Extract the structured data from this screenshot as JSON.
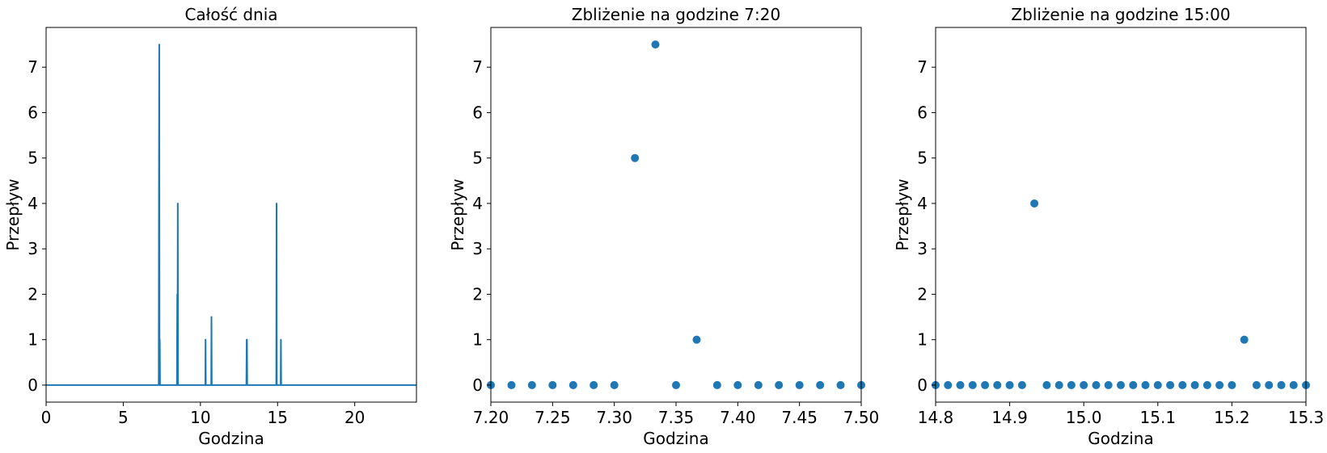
{
  "chart_data": [
    {
      "type": "line",
      "title": "Całość dnia",
      "xlabel": "Godzina",
      "ylabel": "Przepływ",
      "xlim": [
        0,
        24
      ],
      "ylim": [
        -0.375,
        7.875
      ],
      "xticks": [
        0,
        5,
        10,
        15,
        20
      ],
      "xtick_labels": [
        "0",
        "5",
        "10",
        "15",
        "20"
      ],
      "yticks": [
        0,
        1,
        2,
        3,
        4,
        5,
        6,
        7
      ],
      "ytick_labels": [
        "0",
        "1",
        "2",
        "3",
        "4",
        "5",
        "6",
        "7"
      ],
      "grid": false,
      "color": "#1f77b4",
      "series": [
        {
          "x": [
            0,
            7.3,
            7.3167,
            7.3333,
            7.35,
            7.3667,
            7.3833,
            7.4,
            8.48,
            8.5,
            8.5167,
            8.5333,
            8.55,
            8.5667,
            8.58,
            10.32,
            10.3333,
            10.35,
            10.7,
            10.7167,
            10.7333,
            10.75,
            12.98,
            13.0,
            13.0167,
            13.0333,
            14.9,
            14.9167,
            14.9333,
            14.95,
            15.2,
            15.2167,
            15.2333,
            24
          ],
          "y": [
            0,
            0,
            5,
            7.5,
            0,
            1,
            0,
            0,
            0,
            2,
            0,
            4,
            0,
            0,
            0,
            0,
            1,
            0,
            0,
            1.5,
            0,
            0,
            0,
            1,
            1,
            0,
            0,
            0,
            4,
            0,
            0,
            1,
            0,
            0
          ]
        }
      ]
    },
    {
      "type": "scatter",
      "title": "Zbliżenie na godzine 7:20",
      "xlabel": "Godzina",
      "ylabel": "Przepływ",
      "xlim": [
        7.2,
        7.5
      ],
      "ylim": [
        -0.375,
        7.875
      ],
      "xticks": [
        7.2,
        7.25,
        7.3,
        7.35,
        7.4,
        7.45,
        7.5
      ],
      "xtick_labels": [
        "7.20",
        "7.25",
        "7.30",
        "7.35",
        "7.40",
        "7.45",
        "7.50"
      ],
      "yticks": [
        0,
        1,
        2,
        3,
        4,
        5,
        6,
        7
      ],
      "ytick_labels": [
        "0",
        "1",
        "2",
        "3",
        "4",
        "5",
        "6",
        "7"
      ],
      "grid": false,
      "color": "#1f77b4",
      "series": [
        {
          "x": [
            7.2,
            7.2167,
            7.2333,
            7.25,
            7.2667,
            7.2833,
            7.3,
            7.3167,
            7.3333,
            7.35,
            7.3667,
            7.3833,
            7.4,
            7.4167,
            7.4333,
            7.45,
            7.4667,
            7.4833,
            7.5
          ],
          "y": [
            0,
            0,
            0,
            0,
            0,
            0,
            0,
            5,
            7.5,
            0,
            1,
            0,
            0,
            0,
            0,
            0,
            0,
            0,
            0
          ]
        }
      ]
    },
    {
      "type": "scatter",
      "title": "Zbliżenie na godzine 15:00",
      "xlabel": "Godzina",
      "ylabel": "Przepływ",
      "xlim": [
        14.8,
        15.3
      ],
      "ylim": [
        -0.375,
        7.875
      ],
      "xticks": [
        14.8,
        14.9,
        15.0,
        15.1,
        15.2,
        15.3
      ],
      "xtick_labels": [
        "14.8",
        "14.9",
        "15.0",
        "15.1",
        "15.2",
        "15.3"
      ],
      "yticks": [
        0,
        1,
        2,
        3,
        4,
        5,
        6,
        7
      ],
      "ytick_labels": [
        "0",
        "1",
        "2",
        "3",
        "4",
        "5",
        "6",
        "7"
      ],
      "grid": false,
      "color": "#1f77b4",
      "series": [
        {
          "x": [
            14.8,
            14.8167,
            14.8333,
            14.85,
            14.8667,
            14.8833,
            14.9,
            14.9167,
            14.9333,
            14.95,
            14.9667,
            14.9833,
            15.0,
            15.0167,
            15.0333,
            15.05,
            15.0667,
            15.0833,
            15.1,
            15.1167,
            15.1333,
            15.15,
            15.1667,
            15.1833,
            15.2,
            15.2167,
            15.2333,
            15.25,
            15.2667,
            15.2833,
            15.3
          ],
          "y": [
            0,
            0,
            0,
            0,
            0,
            0,
            0,
            0,
            4,
            0,
            0,
            0,
            0,
            0,
            0,
            0,
            0,
            0,
            0,
            0,
            0,
            0,
            0,
            0,
            0,
            1,
            0,
            0,
            0,
            0,
            0
          ]
        }
      ]
    }
  ]
}
